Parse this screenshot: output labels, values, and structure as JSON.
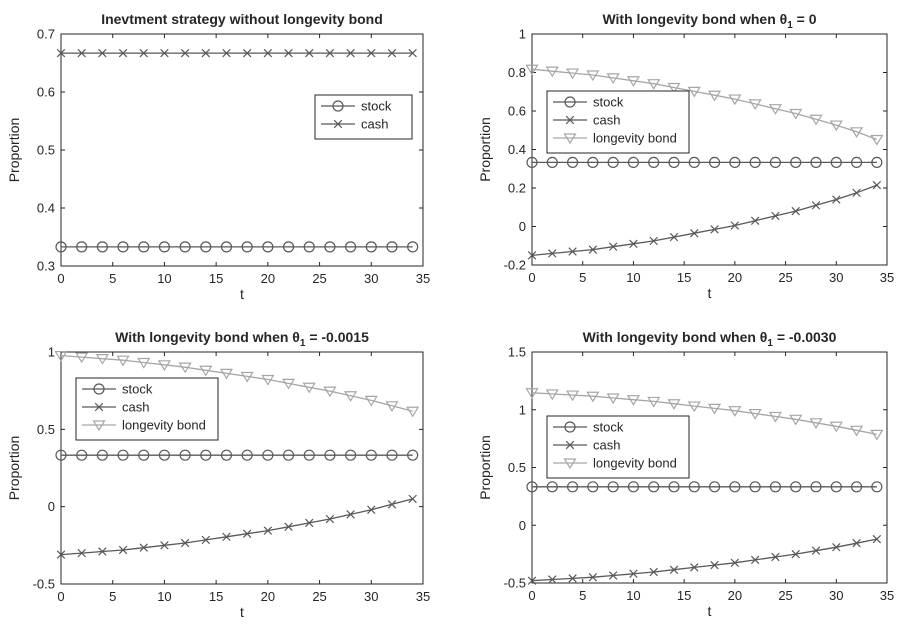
{
  "chart_data": [
    {
      "type": "line",
      "title": "Inevtment strategy without longevity bond",
      "title_suffix": "",
      "xlabel": "t",
      "ylabel": "Proportion",
      "xlim": [
        0,
        35
      ],
      "ylim": [
        0.3,
        0.7
      ],
      "xticks": [
        "0",
        "5",
        "10",
        "15",
        "20",
        "25",
        "30",
        "35"
      ],
      "yticks": [
        "0.3",
        "0.4",
        "0.5",
        "0.6",
        "0.7"
      ],
      "legend_position": "right",
      "x": [
        0,
        2,
        4,
        6,
        8,
        10,
        12,
        14,
        16,
        18,
        20,
        22,
        24,
        26,
        28,
        30,
        32,
        34
      ],
      "series": [
        {
          "name": "stock",
          "marker": "circle",
          "color": "#595959",
          "values": [
            0.333,
            0.333,
            0.333,
            0.333,
            0.333,
            0.333,
            0.333,
            0.333,
            0.333,
            0.333,
            0.333,
            0.333,
            0.333,
            0.333,
            0.333,
            0.333,
            0.333,
            0.333
          ]
        },
        {
          "name": "cash",
          "marker": "x",
          "color": "#595959",
          "values": [
            0.667,
            0.667,
            0.667,
            0.667,
            0.667,
            0.667,
            0.667,
            0.667,
            0.667,
            0.667,
            0.667,
            0.667,
            0.667,
            0.667,
            0.667,
            0.667,
            0.667,
            0.667
          ]
        }
      ]
    },
    {
      "type": "line",
      "title": "With longevity bond when θ",
      "title_sub": "1",
      "title_suffix": " = 0",
      "xlabel": "t",
      "ylabel": "Proportion",
      "xlim": [
        0,
        35
      ],
      "ylim": [
        -0.2,
        1.0
      ],
      "xticks": [
        "0",
        "5",
        "10",
        "15",
        "20",
        "25",
        "30",
        "35"
      ],
      "yticks": [
        "-0.2",
        "0",
        "0.2",
        "0.4",
        "0.6",
        "0.8",
        "1"
      ],
      "legend_position": "upper-left",
      "x": [
        0,
        2,
        4,
        6,
        8,
        10,
        12,
        14,
        16,
        18,
        20,
        22,
        24,
        26,
        28,
        30,
        32,
        34
      ],
      "series": [
        {
          "name": "stock",
          "marker": "circle",
          "color": "#595959",
          "values": [
            0.333,
            0.333,
            0.333,
            0.333,
            0.333,
            0.333,
            0.333,
            0.333,
            0.333,
            0.333,
            0.333,
            0.333,
            0.333,
            0.333,
            0.333,
            0.333,
            0.333,
            0.333
          ]
        },
        {
          "name": "cash",
          "marker": "x",
          "color": "#595959",
          "values": [
            -0.15,
            -0.14,
            -0.13,
            -0.12,
            -0.105,
            -0.09,
            -0.075,
            -0.055,
            -0.035,
            -0.015,
            0.005,
            0.03,
            0.055,
            0.08,
            0.11,
            0.14,
            0.175,
            0.215
          ]
        },
        {
          "name": "longevity bond",
          "marker": "triangle-down",
          "color": "#a6a6a6",
          "values": [
            0.817,
            0.807,
            0.797,
            0.787,
            0.772,
            0.757,
            0.742,
            0.722,
            0.702,
            0.682,
            0.662,
            0.637,
            0.612,
            0.587,
            0.557,
            0.527,
            0.492,
            0.452
          ]
        }
      ]
    },
    {
      "type": "line",
      "title": "With longevity bond when θ",
      "title_sub": "1",
      "title_suffix": " = -0.0015",
      "xlabel": "t",
      "ylabel": "Proportion",
      "xlim": [
        0,
        35
      ],
      "ylim": [
        -0.5,
        1.0
      ],
      "xticks": [
        "0",
        "5",
        "10",
        "15",
        "20",
        "25",
        "30",
        "35"
      ],
      "yticks": [
        "-0.5",
        "0",
        "0.5",
        "1"
      ],
      "legend_position": "upper-left",
      "x": [
        0,
        2,
        4,
        6,
        8,
        10,
        12,
        14,
        16,
        18,
        20,
        22,
        24,
        26,
        28,
        30,
        32,
        34
      ],
      "series": [
        {
          "name": "stock",
          "marker": "circle",
          "color": "#595959",
          "values": [
            0.333,
            0.333,
            0.333,
            0.333,
            0.333,
            0.333,
            0.333,
            0.333,
            0.333,
            0.333,
            0.333,
            0.333,
            0.333,
            0.333,
            0.333,
            0.333,
            0.333,
            0.333
          ]
        },
        {
          "name": "cash",
          "marker": "x",
          "color": "#595959",
          "values": [
            -0.31,
            -0.3,
            -0.29,
            -0.28,
            -0.265,
            -0.25,
            -0.235,
            -0.215,
            -0.195,
            -0.175,
            -0.155,
            -0.13,
            -0.105,
            -0.08,
            -0.05,
            -0.02,
            0.015,
            0.05
          ]
        },
        {
          "name": "longevity bond",
          "marker": "triangle-down",
          "color": "#a6a6a6",
          "values": [
            0.977,
            0.967,
            0.957,
            0.947,
            0.932,
            0.917,
            0.902,
            0.882,
            0.862,
            0.842,
            0.822,
            0.797,
            0.772,
            0.747,
            0.717,
            0.687,
            0.652,
            0.617
          ]
        }
      ]
    },
    {
      "type": "line",
      "title": "With longevity bond when θ",
      "title_sub": "1",
      "title_suffix": " = -0.0030",
      "xlabel": "t",
      "ylabel": "Proportion",
      "xlim": [
        0,
        35
      ],
      "ylim": [
        -0.5,
        1.5
      ],
      "xticks": [
        "0",
        "5",
        "10",
        "15",
        "20",
        "25",
        "30",
        "35"
      ],
      "yticks": [
        "-0.5",
        "0",
        "0.5",
        "1",
        "1.5"
      ],
      "legend_position": "center-left",
      "x": [
        0,
        2,
        4,
        6,
        8,
        10,
        12,
        14,
        16,
        18,
        20,
        22,
        24,
        26,
        28,
        30,
        32,
        34
      ],
      "series": [
        {
          "name": "stock",
          "marker": "circle",
          "color": "#595959",
          "values": [
            0.333,
            0.333,
            0.333,
            0.333,
            0.333,
            0.333,
            0.333,
            0.333,
            0.333,
            0.333,
            0.333,
            0.333,
            0.333,
            0.333,
            0.333,
            0.333,
            0.333,
            0.333
          ]
        },
        {
          "name": "cash",
          "marker": "x",
          "color": "#595959",
          "values": [
            -0.48,
            -0.47,
            -0.46,
            -0.45,
            -0.435,
            -0.42,
            -0.405,
            -0.385,
            -0.365,
            -0.345,
            -0.325,
            -0.3,
            -0.275,
            -0.25,
            -0.22,
            -0.19,
            -0.155,
            -0.12
          ]
        },
        {
          "name": "longevity bond",
          "marker": "triangle-down",
          "color": "#a6a6a6",
          "values": [
            1.147,
            1.137,
            1.127,
            1.117,
            1.102,
            1.087,
            1.072,
            1.052,
            1.032,
            1.012,
            0.992,
            0.967,
            0.942,
            0.917,
            0.887,
            0.857,
            0.822,
            0.787
          ]
        }
      ]
    }
  ]
}
